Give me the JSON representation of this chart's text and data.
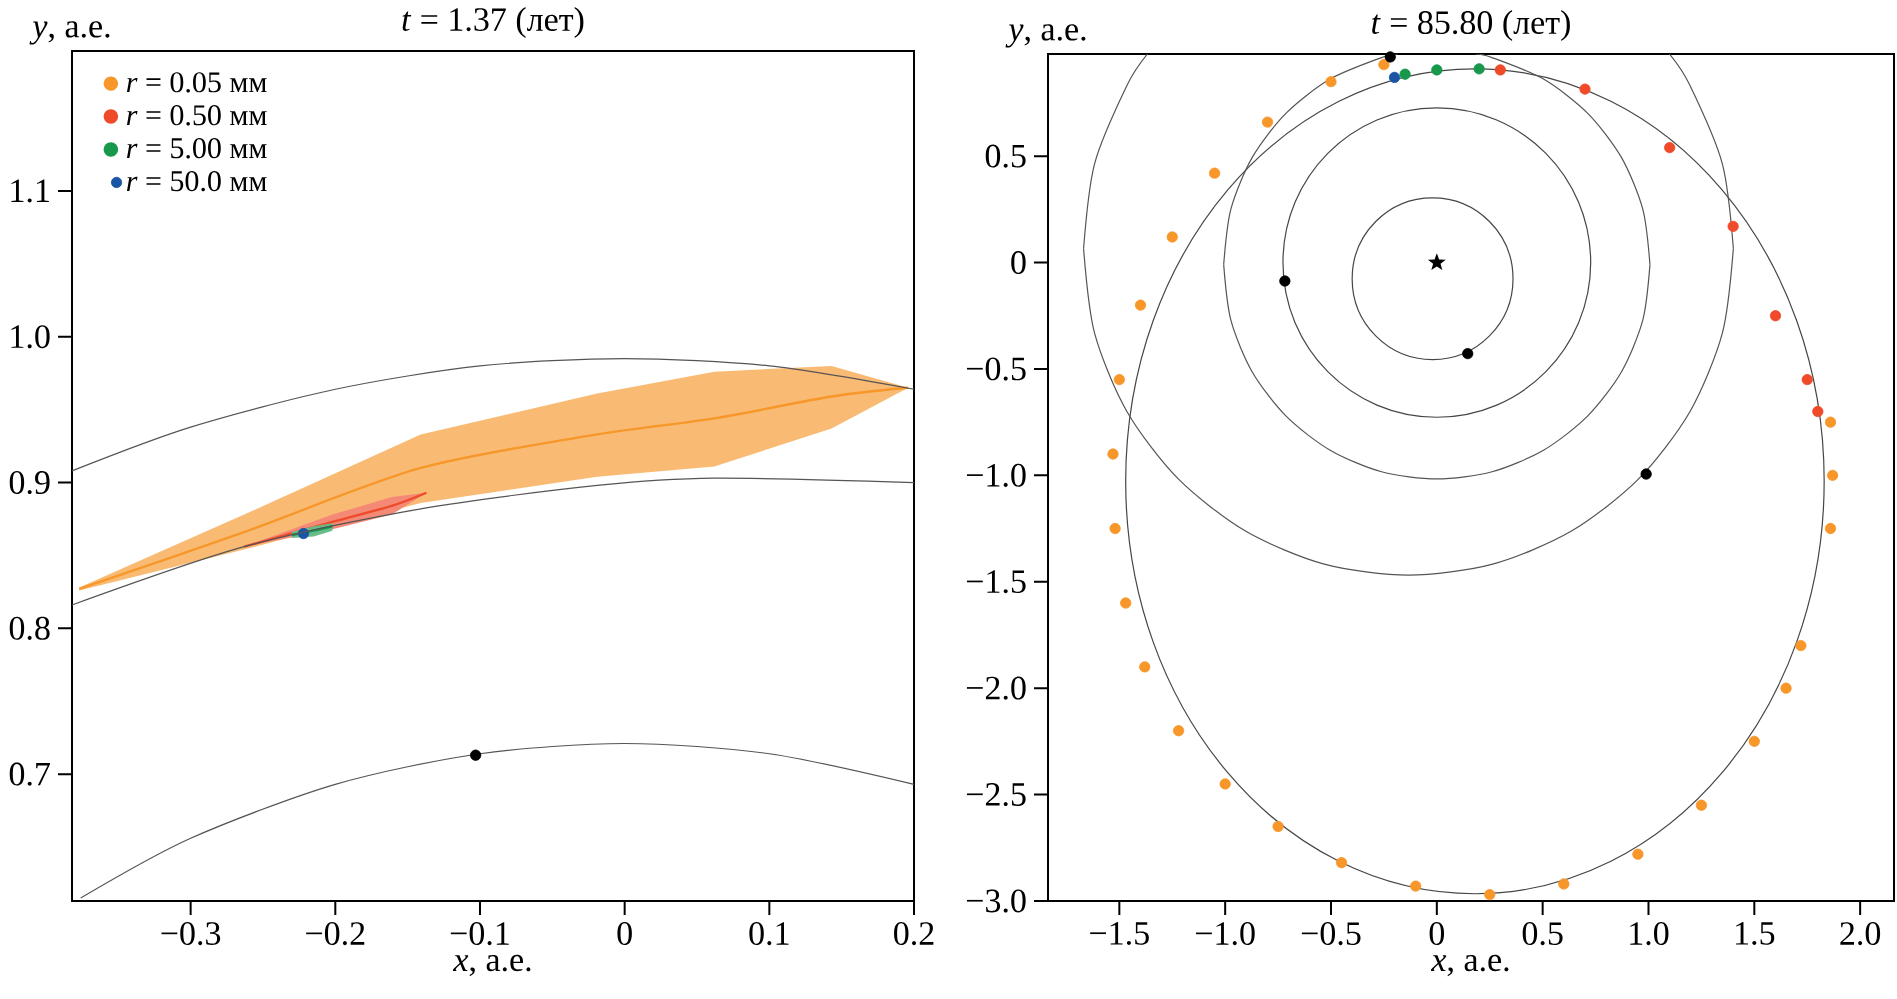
{
  "chart_data": [
    {
      "type": "scatter",
      "title": "*t* = 1.37 (лет)",
      "xlabel": "*x*, а.е.",
      "ylabel": "*y*, а.е.",
      "xlim": [
        -0.382,
        0.2
      ],
      "ylim": [
        0.613,
        1.196
      ],
      "xticks": [
        {
          "value": -0.3,
          "label": "−0.3"
        },
        {
          "value": -0.2,
          "label": "−0.2"
        },
        {
          "value": -0.1,
          "label": "−0.1"
        },
        {
          "value": 0,
          "label": "0"
        },
        {
          "value": 0.1,
          "label": "0.1"
        },
        {
          "value": 0.2,
          "label": "0.2"
        }
      ],
      "yticks": [
        {
          "value": 0.7,
          "label": "0.7"
        },
        {
          "value": 0.8,
          "label": "0.8"
        },
        {
          "value": 0.9,
          "label": "0.9"
        },
        {
          "value": 1.0,
          "label": "1.0"
        },
        {
          "value": 1.1,
          "label": "1.1"
        }
      ],
      "legend": "top left",
      "series": [
        {
          "type": "line",
          "name": "*r* = 0.05 мм",
          "color": "#f7972a",
          "x": [
            -0.377,
            -0.263,
            -0.141,
            -0.019,
            0.062,
            0.143,
            0.196
          ],
          "values": [
            0.827,
            0.866,
            0.91,
            0.933,
            0.944,
            0.959,
            0.965
          ],
          "lower": [
            0.826,
            0.854,
            0.886,
            0.904,
            0.911,
            0.937,
            0.965
          ],
          "upper": [
            0.828,
            0.878,
            0.933,
            0.961,
            0.976,
            0.98,
            0.965
          ]
        },
        {
          "type": "line",
          "name": "*r* = 0.50 мм",
          "color": "#ef4b2b",
          "x": [
            -0.263,
            -0.202,
            -0.161,
            -0.137
          ],
          "values": [
            0.856,
            0.873,
            0.884,
            0.893
          ],
          "lower": [
            0.856,
            0.868,
            0.878,
            0.893
          ],
          "upper": [
            0.856,
            0.878,
            0.89,
            0.893
          ]
        },
        {
          "type": "line",
          "name": "*r* = 5.00 мм",
          "color": "#17984a",
          "x": [
            -0.23,
            -0.215,
            -0.202
          ],
          "values": [
            0.864,
            0.867,
            0.87
          ],
          "lower": [
            0.862,
            0.863,
            0.867
          ],
          "upper": [
            0.866,
            0.87,
            0.872
          ]
        },
        {
          "type": "scatter",
          "name": "*r* = 50.0 мм",
          "color": "#1a55a3",
          "marker": "circle",
          "x": [
            -0.222
          ],
          "values": [
            0.865
          ]
        },
        {
          "type": "line",
          "color": "#555555",
          "x": [
            -0.382,
            -0.3,
            -0.2,
            -0.1,
            0,
            0.1,
            0.2
          ],
          "values": [
            0.908,
            0.938,
            0.964,
            0.98,
            0.985,
            0.98,
            0.964
          ]
        },
        {
          "type": "line",
          "color": "#555555",
          "x": [
            -0.382,
            -0.263,
            -0.141,
            -0.019,
            0.062,
            0.2
          ],
          "values": [
            0.816,
            0.856,
            0.882,
            0.898,
            0.903,
            0.9
          ]
        },
        {
          "type": "line",
          "color": "#555555",
          "x": [
            -0.376,
            -0.3,
            -0.2,
            -0.1,
            0,
            0.1,
            0.2
          ],
          "values": [
            0.615,
            0.656,
            0.693,
            0.714,
            0.721,
            0.714,
            0.693
          ]
        },
        {
          "type": "scatter",
          "color": "#000000",
          "marker": "circle",
          "x": [
            -0.103
          ],
          "values": [
            0.713
          ]
        }
      ]
    },
    {
      "type": "scatter",
      "title": "*t* = 85.80 (лет)",
      "xlabel": "*x*, а.е.",
      "ylabel": "*y*, а.е.",
      "xlim": [
        -1.837,
        2.16
      ],
      "ylim": [
        -3.0,
        0.98
      ],
      "xticks": [
        {
          "value": -1.5,
          "label": "−1.5"
        },
        {
          "value": -1.0,
          "label": "−1.0"
        },
        {
          "value": -0.5,
          "label": "−0.5"
        },
        {
          "value": 0,
          "label": "0"
        },
        {
          "value": 0.5,
          "label": "0.5"
        },
        {
          "value": 1.0,
          "label": "1.0"
        },
        {
          "value": 1.5,
          "label": "1.5"
        },
        {
          "value": 2.0,
          "label": "2.0"
        }
      ],
      "yticks": [
        {
          "value": -3.0,
          "label": "−3.0"
        },
        {
          "value": -2.5,
          "label": "−2.5"
        },
        {
          "value": -2.0,
          "label": "−2.0"
        },
        {
          "value": -1.5,
          "label": "−1.5"
        },
        {
          "value": -1.0,
          "label": "−1.0"
        },
        {
          "value": -0.5,
          "label": "−0.5"
        },
        {
          "value": 0,
          "label": "0"
        },
        {
          "value": 0.5,
          "label": "0.5"
        }
      ],
      "series": [
        {
          "type": "line",
          "color": "#555555",
          "x": [
            0.184,
            0.261,
            0.504,
            0.712,
            0.872,
            0.973,
            1.007
          ],
          "values": [
            0.98,
            0.963,
            0.862,
            0.702,
            0.494,
            0.251,
            -0.01
          ]
        },
        {
          "type": "line",
          "color": "#555555",
          "x": [
            1.007,
            0.973,
            0.872,
            0.712,
            0.504,
            0.261,
            0,
            -0.261,
            -0.504,
            -0.712,
            -0.872,
            -0.973,
            -1.007
          ],
          "values": [
            -0.01,
            -0.271,
            -0.514,
            -0.722,
            -0.882,
            -0.983,
            -1.017,
            -0.983,
            -0.882,
            -0.722,
            -0.514,
            -0.271,
            -0.01
          ]
        },
        {
          "type": "line",
          "color": "#555555",
          "x": [
            -1.007,
            -0.973,
            -0.872,
            -0.712,
            -0.504,
            -0.261,
            -0.184
          ],
          "values": [
            -0.01,
            0.251,
            0.494,
            0.702,
            0.862,
            0.963,
            0.98
          ]
        },
        {
          "type": "line",
          "color": "#555555",
          "x": [
            1.099,
            1.195,
            1.349,
            1.401
          ],
          "values": [
            0.98,
            0.834,
            0.464,
            0.066
          ]
        },
        {
          "type": "line",
          "color": "#555555",
          "x": [
            1.401,
            1.349,
            1.195,
            0.951,
            0.634,
            0.264,
            -0.134,
            -0.532,
            -0.902,
            -1.219,
            -1.463,
            -1.617,
            -1.669
          ],
          "values": [
            0.066,
            -0.332,
            -0.702,
            -1.019,
            -1.263,
            -1.417,
            -1.469,
            -1.417,
            -1.263,
            -1.019,
            -0.702,
            -0.332,
            0.066
          ]
        },
        {
          "type": "line",
          "color": "#555555",
          "x": [
            -1.669,
            -1.617,
            -1.463,
            -1.367
          ],
          "values": [
            0.066,
            0.464,
            0.834,
            0.98
          ]
        },
        {
          "type": "scatter",
          "color": "#f7972a",
          "marker": "circle",
          "x": [
            -0.25,
            -0.5,
            -0.8,
            -1.05,
            -1.25,
            -1.4,
            -1.5,
            -1.53,
            -1.52,
            -1.47,
            -1.38,
            -1.22,
            -1.0,
            -0.75,
            -0.45,
            -0.1,
            0.25,
            0.6,
            0.95,
            1.25,
            1.5,
            1.65,
            1.72,
            1.86,
            1.87,
            1.86
          ],
          "values": [
            0.93,
            0.85,
            0.66,
            0.42,
            0.12,
            -0.2,
            -0.55,
            -0.9,
            -1.25,
            -1.6,
            -1.9,
            -2.2,
            -2.45,
            -2.65,
            -2.82,
            -2.93,
            -2.97,
            -2.92,
            -2.78,
            -2.55,
            -2.25,
            -2.0,
            -1.8,
            -0.75,
            -1.0,
            -1.25
          ]
        },
        {
          "type": "scatter",
          "color": "#ef4b2b",
          "marker": "circle",
          "x": [
            0.3,
            0.7,
            1.1,
            1.4,
            1.6,
            1.75,
            1.8
          ],
          "values": [
            0.905,
            0.815,
            0.54,
            0.17,
            -0.25,
            -0.55,
            -0.7
          ]
        },
        {
          "type": "scatter",
          "color": "#17984a",
          "marker": "circle",
          "x": [
            -0.15,
            0,
            0.2
          ],
          "values": [
            0.885,
            0.905,
            0.91
          ]
        },
        {
          "type": "scatter",
          "color": "#1a55a3",
          "marker": "circle",
          "x": [
            -0.2
          ],
          "values": [
            0.87
          ]
        },
        {
          "type": "scatter",
          "color": "#000000",
          "marker": "circle",
          "x": [
            -0.22,
            0.146,
            -0.718,
            0.989
          ],
          "values": [
            0.966,
            -0.428,
            -0.087,
            -0.994
          ]
        },
        {
          "type": "scatter",
          "color": "#000000",
          "marker": "star",
          "x": [
            0
          ],
          "values": [
            0
          ]
        }
      ]
    }
  ]
}
